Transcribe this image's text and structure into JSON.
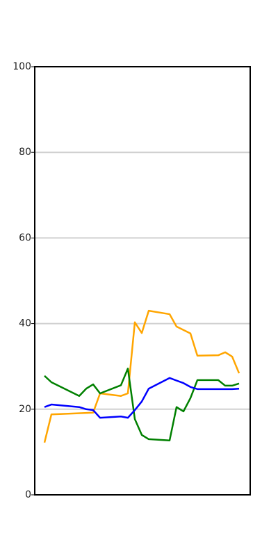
{
  "chart_data": {
    "type": "line",
    "xlim": [
      -1.4,
      29.6
    ],
    "ylim": [
      0,
      100
    ],
    "yticks": [
      0,
      20,
      40,
      60,
      80,
      100
    ],
    "grid": true,
    "series": [
      {
        "color": "orange",
        "x": [
          0,
          1,
          7,
          8,
          11,
          12,
          13,
          14,
          15,
          18,
          19,
          21,
          22,
          25,
          26,
          27,
          28
        ],
        "values": [
          12.2,
          18.8,
          19.2,
          23.7,
          23.1,
          23.7,
          40.3,
          37.8,
          43.0,
          42.2,
          39.3,
          37.7,
          32.5,
          32.6,
          33.3,
          32.3,
          28.4
        ]
      },
      {
        "color": "green",
        "x": [
          0,
          1,
          5,
          6,
          7,
          8,
          11,
          12,
          13,
          14,
          15,
          18,
          19,
          20,
          21,
          22,
          25,
          26,
          27,
          28
        ],
        "values": [
          27.8,
          26.3,
          23.1,
          24.8,
          25.8,
          23.7,
          25.6,
          29.5,
          17.7,
          14.0,
          13.0,
          12.7,
          20.5,
          19.5,
          22.6,
          26.8,
          26.8,
          25.5,
          25.5,
          26.0
        ]
      },
      {
        "color": "blue",
        "x": [
          0,
          1,
          5,
          6,
          7,
          8,
          11,
          12,
          13,
          14,
          15,
          18,
          20,
          21,
          22,
          27,
          28
        ],
        "values": [
          20.5,
          21.1,
          20.5,
          20.0,
          19.8,
          18.0,
          18.3,
          18.0,
          19.8,
          21.8,
          24.8,
          27.3,
          26.1,
          25.2,
          24.7,
          24.7,
          24.8
        ]
      }
    ]
  }
}
